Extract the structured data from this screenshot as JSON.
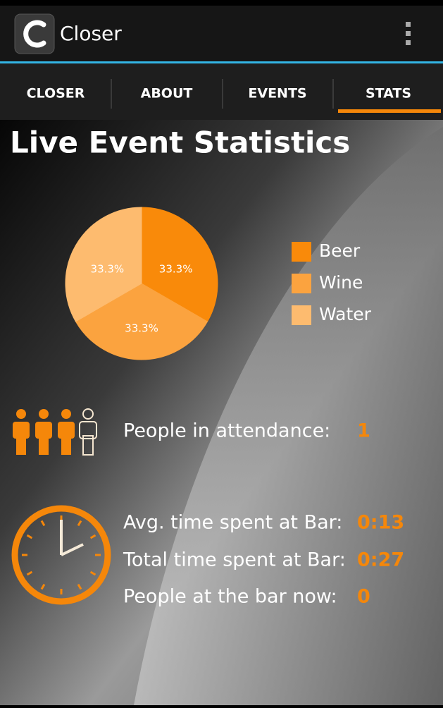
{
  "app_bar": {
    "title": "Closer"
  },
  "tabs": [
    "CLOSER",
    "ABOUT",
    "EVENTS",
    "STATS"
  ],
  "heading": "Live Event Statistics",
  "chart_data": {
    "type": "pie",
    "categories": [
      "Beer",
      "Wine",
      "Water"
    ],
    "values": [
      33.3,
      33.3,
      33.3
    ],
    "value_labels": [
      "33.3%",
      "33.3%",
      "33.3%"
    ],
    "colors": [
      "#f98a0a",
      "#fba33f",
      "#fdbb6f"
    ]
  },
  "stats": [
    {
      "label": "People in attendance:",
      "value": 1
    },
    {
      "label": "Avg. time spent at Bar:",
      "value": "0:13"
    },
    {
      "label": "Total time spent at Bar:",
      "value": "0:27"
    },
    {
      "label": "People at the bar now:",
      "value": 0
    }
  ]
}
